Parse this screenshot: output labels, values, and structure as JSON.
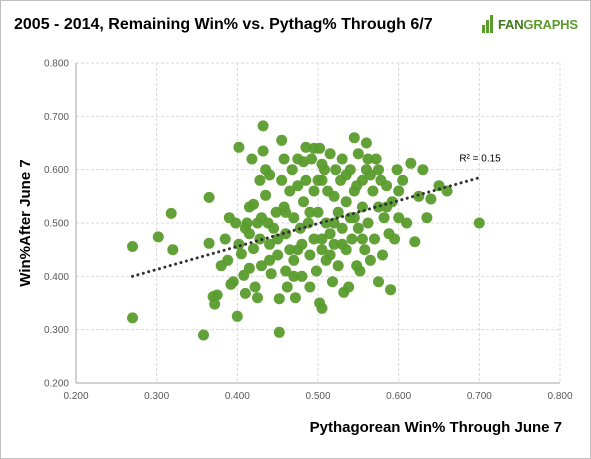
{
  "chart_data": {
    "type": "scatter",
    "title": "2005 - 2014, Remaining Win% vs. Pythag% Through 6/7",
    "xlabel": "Pythagorean Win% Through June 7",
    "ylabel": "Win%After  June 7",
    "xlim": [
      0.2,
      0.8
    ],
    "ylim": [
      0.2,
      0.8
    ],
    "xticks": [
      "0.200",
      "0.300",
      "0.400",
      "0.500",
      "0.600",
      "0.700",
      "0.800"
    ],
    "yticks": [
      "0.200",
      "0.300",
      "0.400",
      "0.500",
      "0.600",
      "0.700",
      "0.800"
    ],
    "grid": true,
    "point_color": "#5a9c2c",
    "trendline": {
      "x": [
        0.27,
        0.7
      ],
      "y": [
        0.4,
        0.585
      ],
      "style": "dotted",
      "color": "#333333"
    },
    "annotation": {
      "text": "R² = 0.15",
      "x": 0.7,
      "y": 0.615
    },
    "points": [
      [
        0.27,
        0.456
      ],
      [
        0.27,
        0.322
      ],
      [
        0.302,
        0.474
      ],
      [
        0.318,
        0.518
      ],
      [
        0.32,
        0.45
      ],
      [
        0.358,
        0.29
      ],
      [
        0.365,
        0.548
      ],
      [
        0.365,
        0.462
      ],
      [
        0.37,
        0.362
      ],
      [
        0.372,
        0.348
      ],
      [
        0.375,
        0.365
      ],
      [
        0.38,
        0.42
      ],
      [
        0.385,
        0.47
      ],
      [
        0.388,
        0.43
      ],
      [
        0.39,
        0.51
      ],
      [
        0.392,
        0.385
      ],
      [
        0.395,
        0.39
      ],
      [
        0.398,
        0.5
      ],
      [
        0.4,
        0.325
      ],
      [
        0.402,
        0.642
      ],
      [
        0.402,
        0.46
      ],
      [
        0.405,
        0.442
      ],
      [
        0.408,
        0.402
      ],
      [
        0.41,
        0.49
      ],
      [
        0.41,
        0.368
      ],
      [
        0.412,
        0.5
      ],
      [
        0.415,
        0.53
      ],
      [
        0.415,
        0.415
      ],
      [
        0.418,
        0.62
      ],
      [
        0.42,
        0.535
      ],
      [
        0.42,
        0.452
      ],
      [
        0.422,
        0.38
      ],
      [
        0.425,
        0.36
      ],
      [
        0.428,
        0.58
      ],
      [
        0.428,
        0.47
      ],
      [
        0.43,
        0.51
      ],
      [
        0.43,
        0.42
      ],
      [
        0.432,
        0.682
      ],
      [
        0.432,
        0.635
      ],
      [
        0.435,
        0.6
      ],
      [
        0.435,
        0.552
      ],
      [
        0.438,
        0.5
      ],
      [
        0.44,
        0.46
      ],
      [
        0.44,
        0.43
      ],
      [
        0.442,
        0.405
      ],
      [
        0.445,
        0.49
      ],
      [
        0.448,
        0.52
      ],
      [
        0.45,
        0.44
      ],
      [
        0.452,
        0.358
      ],
      [
        0.452,
        0.295
      ],
      [
        0.455,
        0.655
      ],
      [
        0.455,
        0.58
      ],
      [
        0.458,
        0.53
      ],
      [
        0.46,
        0.48
      ],
      [
        0.46,
        0.41
      ],
      [
        0.462,
        0.38
      ],
      [
        0.465,
        0.56
      ],
      [
        0.465,
        0.45
      ],
      [
        0.468,
        0.6
      ],
      [
        0.47,
        0.51
      ],
      [
        0.47,
        0.43
      ],
      [
        0.472,
        0.36
      ],
      [
        0.475,
        0.62
      ],
      [
        0.475,
        0.57
      ],
      [
        0.478,
        0.49
      ],
      [
        0.48,
        0.46
      ],
      [
        0.48,
        0.4
      ],
      [
        0.482,
        0.54
      ],
      [
        0.485,
        0.642
      ],
      [
        0.485,
        0.58
      ],
      [
        0.488,
        0.5
      ],
      [
        0.49,
        0.44
      ],
      [
        0.49,
        0.38
      ],
      [
        0.492,
        0.62
      ],
      [
        0.495,
        0.56
      ],
      [
        0.495,
        0.47
      ],
      [
        0.498,
        0.41
      ],
      [
        0.5,
        0.58
      ],
      [
        0.5,
        0.52
      ],
      [
        0.502,
        0.64
      ],
      [
        0.502,
        0.35
      ],
      [
        0.505,
        0.34
      ],
      [
        0.505,
        0.45
      ],
      [
        0.508,
        0.6
      ],
      [
        0.51,
        0.5
      ],
      [
        0.51,
        0.43
      ],
      [
        0.512,
        0.56
      ],
      [
        0.515,
        0.63
      ],
      [
        0.515,
        0.48
      ],
      [
        0.518,
        0.39
      ],
      [
        0.52,
        0.55
      ],
      [
        0.52,
        0.46
      ],
      [
        0.522,
        0.6
      ],
      [
        0.525,
        0.52
      ],
      [
        0.525,
        0.42
      ],
      [
        0.528,
        0.58
      ],
      [
        0.53,
        0.49
      ],
      [
        0.53,
        0.62
      ],
      [
        0.532,
        0.37
      ],
      [
        0.535,
        0.54
      ],
      [
        0.535,
        0.45
      ],
      [
        0.538,
        0.38
      ],
      [
        0.54,
        0.6
      ],
      [
        0.54,
        0.51
      ],
      [
        0.542,
        0.47
      ],
      [
        0.545,
        0.66
      ],
      [
        0.545,
        0.56
      ],
      [
        0.548,
        0.42
      ],
      [
        0.55,
        0.63
      ],
      [
        0.55,
        0.49
      ],
      [
        0.552,
        0.41
      ],
      [
        0.555,
        0.58
      ],
      [
        0.555,
        0.53
      ],
      [
        0.558,
        0.45
      ],
      [
        0.56,
        0.65
      ],
      [
        0.56,
        0.6
      ],
      [
        0.562,
        0.5
      ],
      [
        0.565,
        0.43
      ],
      [
        0.568,
        0.56
      ],
      [
        0.57,
        0.47
      ],
      [
        0.572,
        0.62
      ],
      [
        0.575,
        0.53
      ],
      [
        0.575,
        0.39
      ],
      [
        0.578,
        0.58
      ],
      [
        0.58,
        0.44
      ],
      [
        0.582,
        0.51
      ],
      [
        0.585,
        0.57
      ],
      [
        0.588,
        0.48
      ],
      [
        0.59,
        0.375
      ],
      [
        0.592,
        0.54
      ],
      [
        0.595,
        0.47
      ],
      [
        0.598,
        0.6
      ],
      [
        0.6,
        0.51
      ],
      [
        0.6,
        0.56
      ],
      [
        0.605,
        0.58
      ],
      [
        0.61,
        0.5
      ],
      [
        0.615,
        0.612
      ],
      [
        0.62,
        0.465
      ],
      [
        0.625,
        0.55
      ],
      [
        0.63,
        0.6
      ],
      [
        0.635,
        0.51
      ],
      [
        0.64,
        0.545
      ],
      [
        0.65,
        0.57
      ],
      [
        0.66,
        0.56
      ],
      [
        0.7,
        0.5
      ],
      [
        0.44,
        0.59
      ],
      [
        0.458,
        0.62
      ],
      [
        0.47,
        0.4
      ],
      [
        0.482,
        0.615
      ],
      [
        0.495,
        0.64
      ],
      [
        0.505,
        0.61
      ],
      [
        0.52,
        0.5
      ],
      [
        0.535,
        0.59
      ],
      [
        0.548,
        0.57
      ],
      [
        0.562,
        0.62
      ],
      [
        0.575,
        0.6
      ],
      [
        0.585,
        0.53
      ],
      [
        0.45,
        0.47
      ],
      [
        0.46,
        0.52
      ],
      [
        0.475,
        0.45
      ],
      [
        0.49,
        0.52
      ],
      [
        0.505,
        0.58
      ],
      [
        0.515,
        0.44
      ],
      [
        0.53,
        0.46
      ],
      [
        0.545,
        0.51
      ],
      [
        0.555,
        0.47
      ],
      [
        0.565,
        0.59
      ],
      [
        0.415,
        0.48
      ],
      [
        0.425,
        0.5
      ],
      [
        0.505,
        0.47
      ]
    ]
  }
}
